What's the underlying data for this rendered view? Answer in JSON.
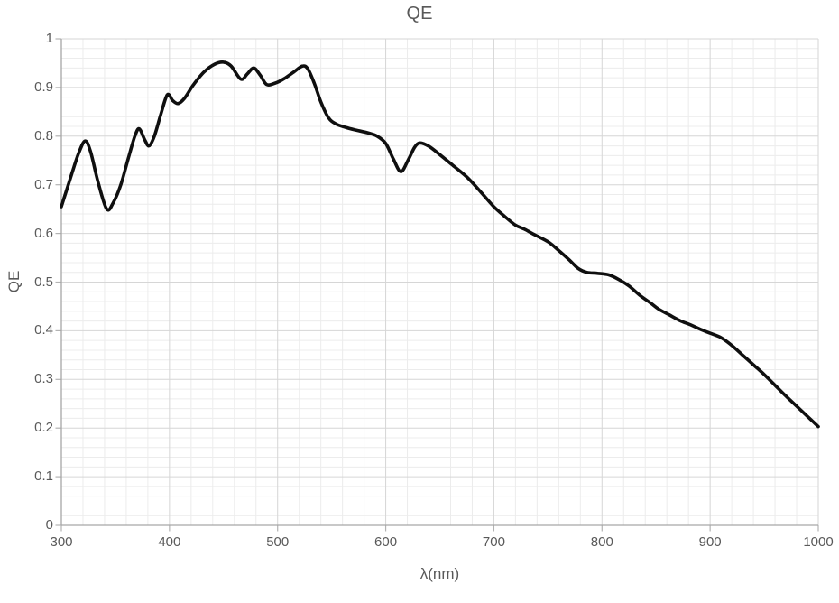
{
  "title": "QE",
  "colors": {
    "background": "#ffffff",
    "curve": "#0f0f0f",
    "minor_gridline": "#ececec",
    "major_gridline": "#d6d6d6",
    "axis_line": "#a6a6a6",
    "tick_mark": "#b3b3b3",
    "label_text": "#595959"
  },
  "chart_data": {
    "type": "line",
    "title": "QE",
    "xlabel": "λ(nm)",
    "ylabel": "QE",
    "xlim": [
      300,
      1000
    ],
    "ylim": [
      0,
      1
    ],
    "x_major_step": 100,
    "x_minor_step": 20,
    "y_major_step": 0.1,
    "y_minor_step": 0.02,
    "grid": "major+minor",
    "legend": "none",
    "x_tick_labels": [
      "300",
      "400",
      "500",
      "600",
      "700",
      "800",
      "900",
      "1000"
    ],
    "y_tick_labels": [
      "0",
      "0.1",
      "0.2",
      "0.3",
      "0.4",
      "0.5",
      "0.6",
      "0.7",
      "0.8",
      "0.9",
      "1"
    ],
    "series": [
      {
        "name": "QE",
        "color": "#0f0f0f",
        "points": [
          [
            300,
            0.655
          ],
          [
            305,
            0.69
          ],
          [
            310,
            0.725
          ],
          [
            316,
            0.765
          ],
          [
            322,
            0.79
          ],
          [
            327,
            0.768
          ],
          [
            334,
            0.705
          ],
          [
            342,
            0.65
          ],
          [
            348,
            0.663
          ],
          [
            355,
            0.7
          ],
          [
            362,
            0.755
          ],
          [
            368,
            0.8
          ],
          [
            372,
            0.815
          ],
          [
            377,
            0.793
          ],
          [
            381,
            0.78
          ],
          [
            386,
            0.8
          ],
          [
            392,
            0.845
          ],
          [
            398,
            0.885
          ],
          [
            403,
            0.873
          ],
          [
            408,
            0.867
          ],
          [
            414,
            0.878
          ],
          [
            422,
            0.905
          ],
          [
            432,
            0.932
          ],
          [
            442,
            0.948
          ],
          [
            450,
            0.952
          ],
          [
            457,
            0.944
          ],
          [
            466,
            0.917
          ],
          [
            472,
            0.928
          ],
          [
            478,
            0.94
          ],
          [
            484,
            0.925
          ],
          [
            490,
            0.906
          ],
          [
            498,
            0.909
          ],
          [
            506,
            0.918
          ],
          [
            515,
            0.932
          ],
          [
            523,
            0.944
          ],
          [
            528,
            0.938
          ],
          [
            534,
            0.908
          ],
          [
            540,
            0.87
          ],
          [
            547,
            0.838
          ],
          [
            554,
            0.825
          ],
          [
            563,
            0.818
          ],
          [
            573,
            0.812
          ],
          [
            583,
            0.807
          ],
          [
            592,
            0.8
          ],
          [
            600,
            0.785
          ],
          [
            607,
            0.753
          ],
          [
            614,
            0.727
          ],
          [
            621,
            0.752
          ],
          [
            627,
            0.778
          ],
          [
            632,
            0.786
          ],
          [
            640,
            0.779
          ],
          [
            650,
            0.762
          ],
          [
            662,
            0.74
          ],
          [
            675,
            0.716
          ],
          [
            688,
            0.685
          ],
          [
            700,
            0.655
          ],
          [
            710,
            0.635
          ],
          [
            720,
            0.617
          ],
          [
            728,
            0.609
          ],
          [
            738,
            0.597
          ],
          [
            750,
            0.583
          ],
          [
            760,
            0.565
          ],
          [
            770,
            0.545
          ],
          [
            778,
            0.528
          ],
          [
            786,
            0.52
          ],
          [
            796,
            0.518
          ],
          [
            806,
            0.515
          ],
          [
            815,
            0.506
          ],
          [
            825,
            0.492
          ],
          [
            835,
            0.473
          ],
          [
            845,
            0.457
          ],
          [
            852,
            0.445
          ],
          [
            862,
            0.433
          ],
          [
            872,
            0.421
          ],
          [
            882,
            0.412
          ],
          [
            892,
            0.402
          ],
          [
            900,
            0.395
          ],
          [
            910,
            0.386
          ],
          [
            920,
            0.37
          ],
          [
            930,
            0.35
          ],
          [
            940,
            0.33
          ],
          [
            950,
            0.31
          ],
          [
            960,
            0.288
          ],
          [
            970,
            0.266
          ],
          [
            980,
            0.245
          ],
          [
            990,
            0.224
          ],
          [
            1000,
            0.203
          ]
        ]
      }
    ]
  }
}
